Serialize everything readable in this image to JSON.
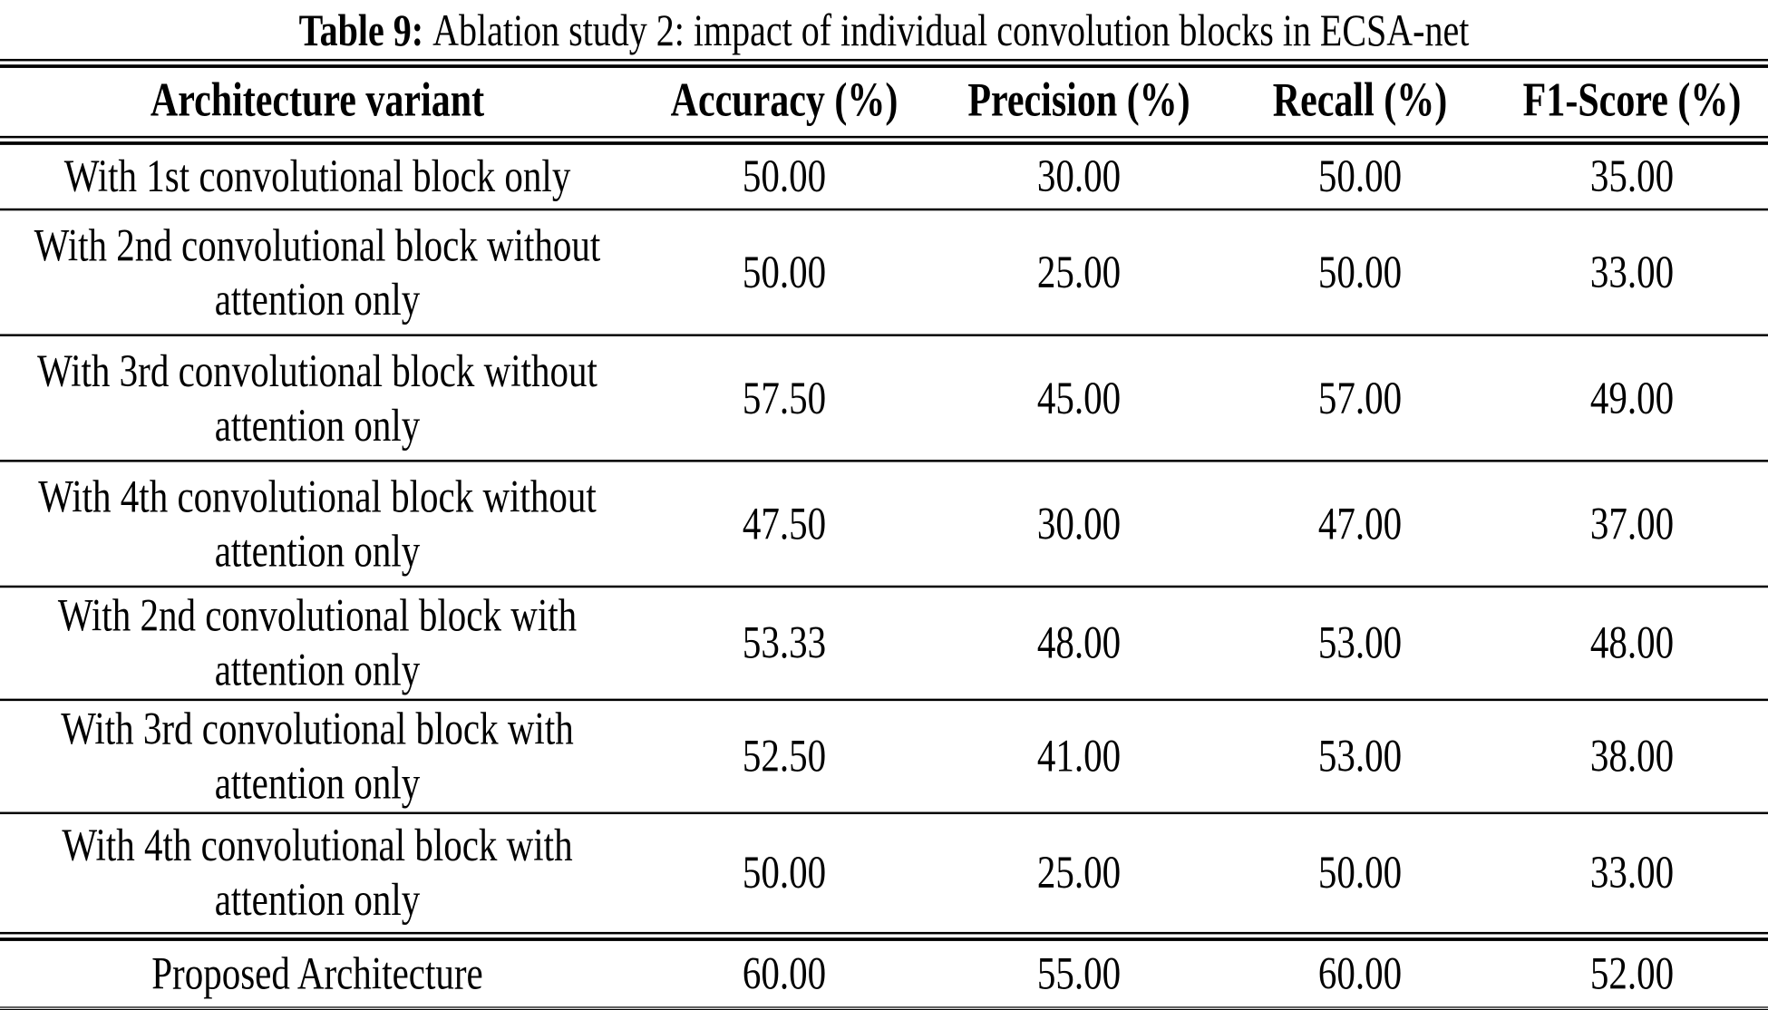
{
  "caption": {
    "label": "Table 9:",
    "text": "Ablation study 2: impact of individual convolution blocks in ECSA-net"
  },
  "table": {
    "columns": {
      "variant": "Architecture variant",
      "accuracy": "Accuracy (%)",
      "precision": "Precision (%)",
      "recall": "Recall (%)",
      "f1": "F1-Score (%)"
    },
    "rows": [
      {
        "variant": "With 1st convolutional block only",
        "accuracy": "50.00",
        "precision": "30.00",
        "recall": "50.00",
        "f1": "35.00"
      },
      {
        "variant": "With 2nd convolutional block without attention only",
        "accuracy": "50.00",
        "precision": "25.00",
        "recall": "50.00",
        "f1": "33.00"
      },
      {
        "variant": "With 3rd convolutional block without attention only",
        "accuracy": "57.50",
        "precision": "45.00",
        "recall": "57.00",
        "f1": "49.00"
      },
      {
        "variant": "With 4th convolutional block without attention only",
        "accuracy": "47.50",
        "precision": "30.00",
        "recall": "47.00",
        "f1": "37.00"
      },
      {
        "variant": "With 2nd convolutional block with attention only",
        "accuracy": "53.33",
        "precision": "48.00",
        "recall": "53.00",
        "f1": "48.00"
      },
      {
        "variant": "With 3rd convolutional block with attention only",
        "accuracy": "52.50",
        "precision": "41.00",
        "recall": "53.00",
        "f1": "38.00"
      },
      {
        "variant": "With 4th convolutional block with attention only",
        "accuracy": "50.00",
        "precision": "25.00",
        "recall": "50.00",
        "f1": "33.00"
      },
      {
        "variant": "Proposed Architecture",
        "accuracy": "60.00",
        "precision": "55.00",
        "recall": "60.00",
        "f1": "52.00"
      }
    ]
  },
  "colors": {
    "text": "#000000",
    "background": "#ffffff",
    "rule": "#000000"
  }
}
